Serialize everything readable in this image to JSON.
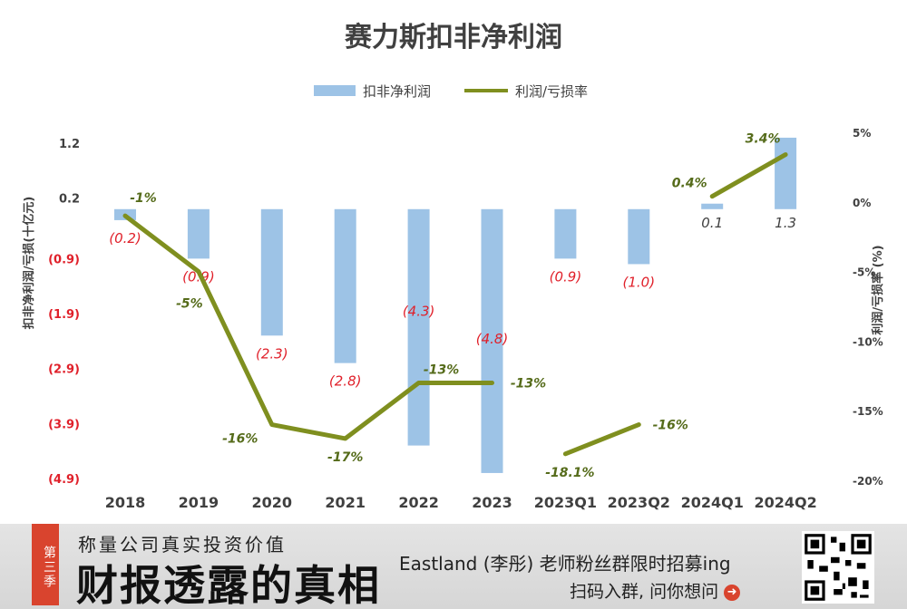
{
  "chart_data": {
    "type": "bar+line",
    "title": "赛力斯扣非净利润",
    "categories": [
      "2018",
      "2019",
      "2020",
      "2021",
      "2022",
      "2023",
      "2023Q1",
      "2023Q2",
      "2024Q1",
      "2024Q2"
    ],
    "series": [
      {
        "name": "扣非净利润",
        "type": "bar",
        "axis": "left",
        "values": [
          -0.2,
          -0.9,
          -2.3,
          -2.8,
          -4.3,
          -4.8,
          -0.9,
          -1.0,
          0.1,
          1.3
        ],
        "labels": [
          "(0.2)",
          "(0.9)",
          "(2.3)",
          "(2.8)",
          "(4.3)",
          "(4.8)",
          "(0.9)",
          "(1.0)",
          "0.1",
          "1.3"
        ],
        "color": "#9dc3e6"
      },
      {
        "name": "利润/亏损率",
        "type": "line",
        "axis": "right",
        "values": [
          -1,
          -5,
          -16,
          -17,
          -13,
          -13,
          -18.1,
          -16,
          0.4,
          3.4
        ],
        "labels": [
          "-1%",
          "-5%",
          "-16%",
          "-17%",
          "-13%",
          "-13%",
          "-18.1%",
          "-16%",
          "0.4%",
          "3.4%"
        ],
        "segments": [
          [
            0,
            5
          ],
          [
            6,
            7
          ],
          [
            8,
            9
          ]
        ],
        "color": "#7f8f1f"
      }
    ],
    "left_axis": {
      "label": "扣非净利润/亏损(十亿元)",
      "range": [
        -4.9,
        1.2
      ],
      "ticks": [
        1.2,
        0.2,
        -0.9,
        -1.9,
        -2.9,
        -3.9,
        -4.9
      ],
      "tick_labels": [
        "1.2",
        "0.2",
        "(0.9)",
        "(1.9)",
        "(2.9)",
        "(3.9)",
        "(4.9)"
      ]
    },
    "right_axis": {
      "label": "利润/亏损率 (%)",
      "range": [
        -20,
        5
      ],
      "ticks": [
        5,
        0,
        -5,
        -10,
        -15,
        -20
      ],
      "tick_labels": [
        "5%",
        "0%",
        "-5%",
        "-10%",
        "-15%",
        "-20%"
      ]
    },
    "legend_position": "top-center",
    "grid": false
  },
  "footer": {
    "badge": "第三季",
    "tagline": "称量公司真实投资价值",
    "brand": "财报透露的真相",
    "promo_title": "Eastland (李彤) 老师粉丝群限时招募ing",
    "promo_subtitle": "扫码入群, 问你想问"
  }
}
